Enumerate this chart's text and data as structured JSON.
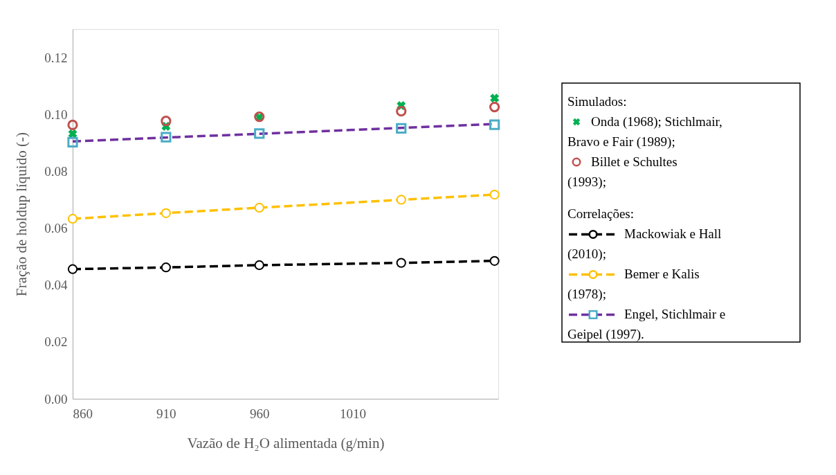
{
  "chart_data": {
    "type": "line",
    "xlabel": "Vazão de H₂O alimentada (g/min)",
    "ylabel": "Fração de holdup  líquido (-)",
    "x": [
      860,
      910,
      960,
      1036,
      1086
    ],
    "xlim": [
      860,
      1088
    ],
    "xticks": [
      860,
      910,
      960,
      1010
    ],
    "ylim": [
      0,
      0.13
    ],
    "yticks": [
      {
        "value": 0,
        "label": "0.00"
      },
      {
        "value": 0.02,
        "label": "0.02"
      },
      {
        "value": 0.04,
        "label": "0.04"
      },
      {
        "value": 0.06,
        "label": "0.06"
      },
      {
        "value": 0.08,
        "label": "0.08"
      },
      {
        "value": 0.1,
        "label": "0.10"
      },
      {
        "value": 0.12,
        "label": "0.12"
      }
    ],
    "grid": false,
    "legend": "right",
    "annotations": [
      "Simulados:",
      "Correlações:"
    ],
    "series": [
      {
        "name": "Onda (1968); Stichlmair, Bravo e Fair (1989);",
        "type": "scatter",
        "marker": "cross",
        "color": "#00b050",
        "values": [
          0.0932,
          0.0958,
          0.099,
          0.1031,
          0.1057
        ]
      },
      {
        "name": "Billet e Schultes (1993);",
        "type": "scatter",
        "marker": "circle",
        "color": "#c0504d",
        "values": [
          0.0963,
          0.0977,
          0.0992,
          0.1011,
          0.1026
        ]
      },
      {
        "name": "Mackowiak e Hall (2010);",
        "marker": "circle",
        "line_style": "dashed",
        "color": "#000000",
        "values": [
          0.0456,
          0.0462,
          0.047,
          0.0478,
          0.0485
        ]
      },
      {
        "name": "Bemer e Kalis (1978);",
        "marker": "circle",
        "line_style": "dashed",
        "color": "#ffc000",
        "values": [
          0.0633,
          0.0653,
          0.0672,
          0.07,
          0.0718
        ]
      },
      {
        "marker": "none",
        "line_style": "dashed",
        "color": "#7030a0",
        "x": [
          860,
          1086
        ],
        "values": [
          0.0905,
          0.0966
        ]
      },
      {
        "name": "Engel, Stichlmair e Geipel (1997).",
        "type": "scatter",
        "marker": "square",
        "color": "#4bacc6",
        "values": [
          0.0902,
          0.092,
          0.0933,
          0.0951,
          0.0964
        ]
      }
    ]
  }
}
